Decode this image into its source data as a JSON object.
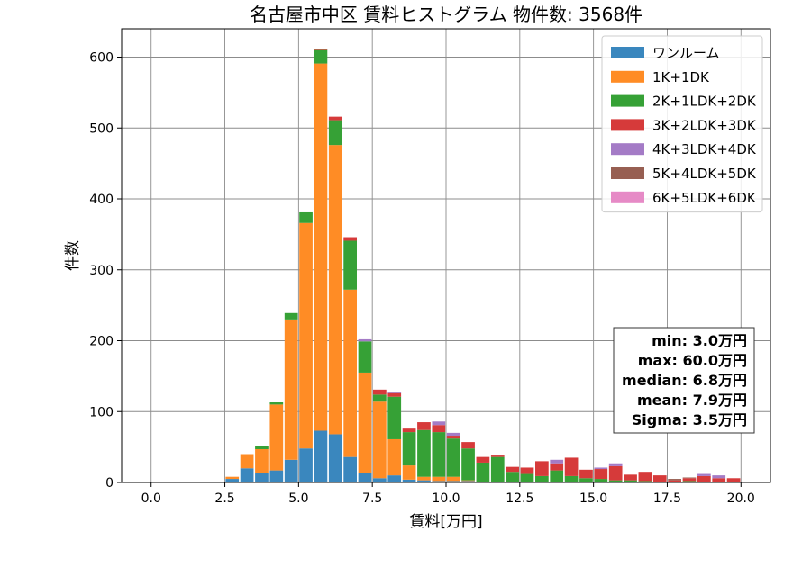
{
  "chart_data": {
    "type": "bar",
    "stacked": true,
    "title": "名古屋市中区 賃料ヒストグラム  物件数: 3568件",
    "xlabel": "賃料[万円]",
    "ylabel": "件数",
    "xlim": [
      -1,
      21
    ],
    "ylim": [
      0,
      640
    ],
    "xticks": [
      "0.0",
      "2.5",
      "5.0",
      "7.5",
      "10.0",
      "12.5",
      "15.0",
      "17.5",
      "20.0"
    ],
    "xtick_values": [
      0,
      2.5,
      5,
      7.5,
      10,
      12.5,
      15,
      17.5,
      20
    ],
    "yticks": [
      "0",
      "100",
      "200",
      "300",
      "400",
      "500",
      "600"
    ],
    "ytick_values": [
      0,
      100,
      200,
      300,
      400,
      500,
      600
    ],
    "grid": true,
    "legend_position": "top-right",
    "bin_width": 0.5,
    "x": [
      2.75,
      3.25,
      3.75,
      4.25,
      4.75,
      5.25,
      5.75,
      6.25,
      6.75,
      7.25,
      7.75,
      8.25,
      8.75,
      9.25,
      9.75,
      10.25,
      10.75,
      11.25,
      11.75,
      12.25,
      12.75,
      13.25,
      13.75,
      14.25,
      14.75,
      15.25,
      15.75,
      16.25,
      16.75,
      17.25,
      17.75,
      18.25,
      18.75,
      19.25,
      19.75
    ],
    "series": [
      {
        "name": "ワンルーム",
        "color": "#3a87be",
        "values": [
          5,
          20,
          13,
          17,
          32,
          48,
          73,
          68,
          36,
          13,
          6,
          10,
          4,
          3,
          2,
          2,
          2,
          1,
          1,
          0,
          0,
          0,
          0,
          0,
          0,
          0,
          0,
          0,
          0,
          0,
          0,
          0,
          0,
          0,
          0
        ]
      },
      {
        "name": "1K+1DK",
        "color": "#ff8c25",
        "values": [
          3,
          20,
          34,
          93,
          198,
          318,
          518,
          408,
          236,
          142,
          108,
          51,
          20,
          5,
          6,
          6,
          1,
          0,
          0,
          0,
          0,
          0,
          0,
          0,
          0,
          0,
          0,
          0,
          0,
          0,
          0,
          0,
          0,
          0,
          0
        ]
      },
      {
        "name": "2K+1LDK+2DK",
        "color": "#36a136",
        "values": [
          0,
          0,
          5,
          3,
          9,
          15,
          19,
          35,
          69,
          44,
          10,
          60,
          47,
          66,
          63,
          54,
          45,
          27,
          35,
          15,
          12,
          9,
          17,
          9,
          6,
          5,
          3,
          3,
          2,
          1,
          0,
          2,
          1,
          1,
          1
        ]
      },
      {
        "name": "3K+2LDK+3DK",
        "color": "#d63a3a",
        "values": [
          0,
          0,
          0,
          0,
          0,
          0,
          2,
          5,
          5,
          0,
          7,
          5,
          5,
          11,
          10,
          4,
          9,
          8,
          2,
          7,
          9,
          21,
          10,
          26,
          12,
          14,
          20,
          8,
          13,
          9,
          3,
          4,
          8,
          5,
          5
        ]
      },
      {
        "name": "4K+3LDK+4DK",
        "color": "#a47bc6",
        "values": [
          0,
          0,
          0,
          0,
          0,
          0,
          0,
          0,
          0,
          3,
          0,
          2,
          0,
          0,
          5,
          4,
          0,
          0,
          0,
          0,
          0,
          0,
          5,
          0,
          0,
          2,
          4,
          0,
          0,
          0,
          0,
          0,
          3,
          4,
          0
        ]
      },
      {
        "name": "5K+4LDK+5DK",
        "color": "#975f52",
        "values": [
          0,
          0,
          0,
          0,
          0,
          0,
          0,
          0,
          0,
          0,
          0,
          0,
          0,
          0,
          0,
          0,
          0,
          0,
          0,
          0,
          0,
          0,
          0,
          0,
          0,
          0,
          0,
          0,
          0,
          0,
          2,
          1,
          0,
          0,
          0
        ]
      },
      {
        "name": "6K+5LDK+6DK",
        "color": "#e68ac6",
        "values": [
          0,
          0,
          0,
          0,
          0,
          0,
          0,
          0,
          0,
          0,
          0,
          0,
          0,
          0,
          0,
          0,
          0,
          0,
          0,
          0,
          0,
          0,
          0,
          0,
          0,
          0,
          0,
          0,
          0,
          0,
          0,
          0,
          0,
          0,
          0
        ]
      }
    ],
    "stats": [
      "min: 3.0万円",
      "max: 60.0万円",
      "median: 6.8万円",
      "mean: 7.9万円",
      "Sigma: 3.5万円"
    ]
  }
}
